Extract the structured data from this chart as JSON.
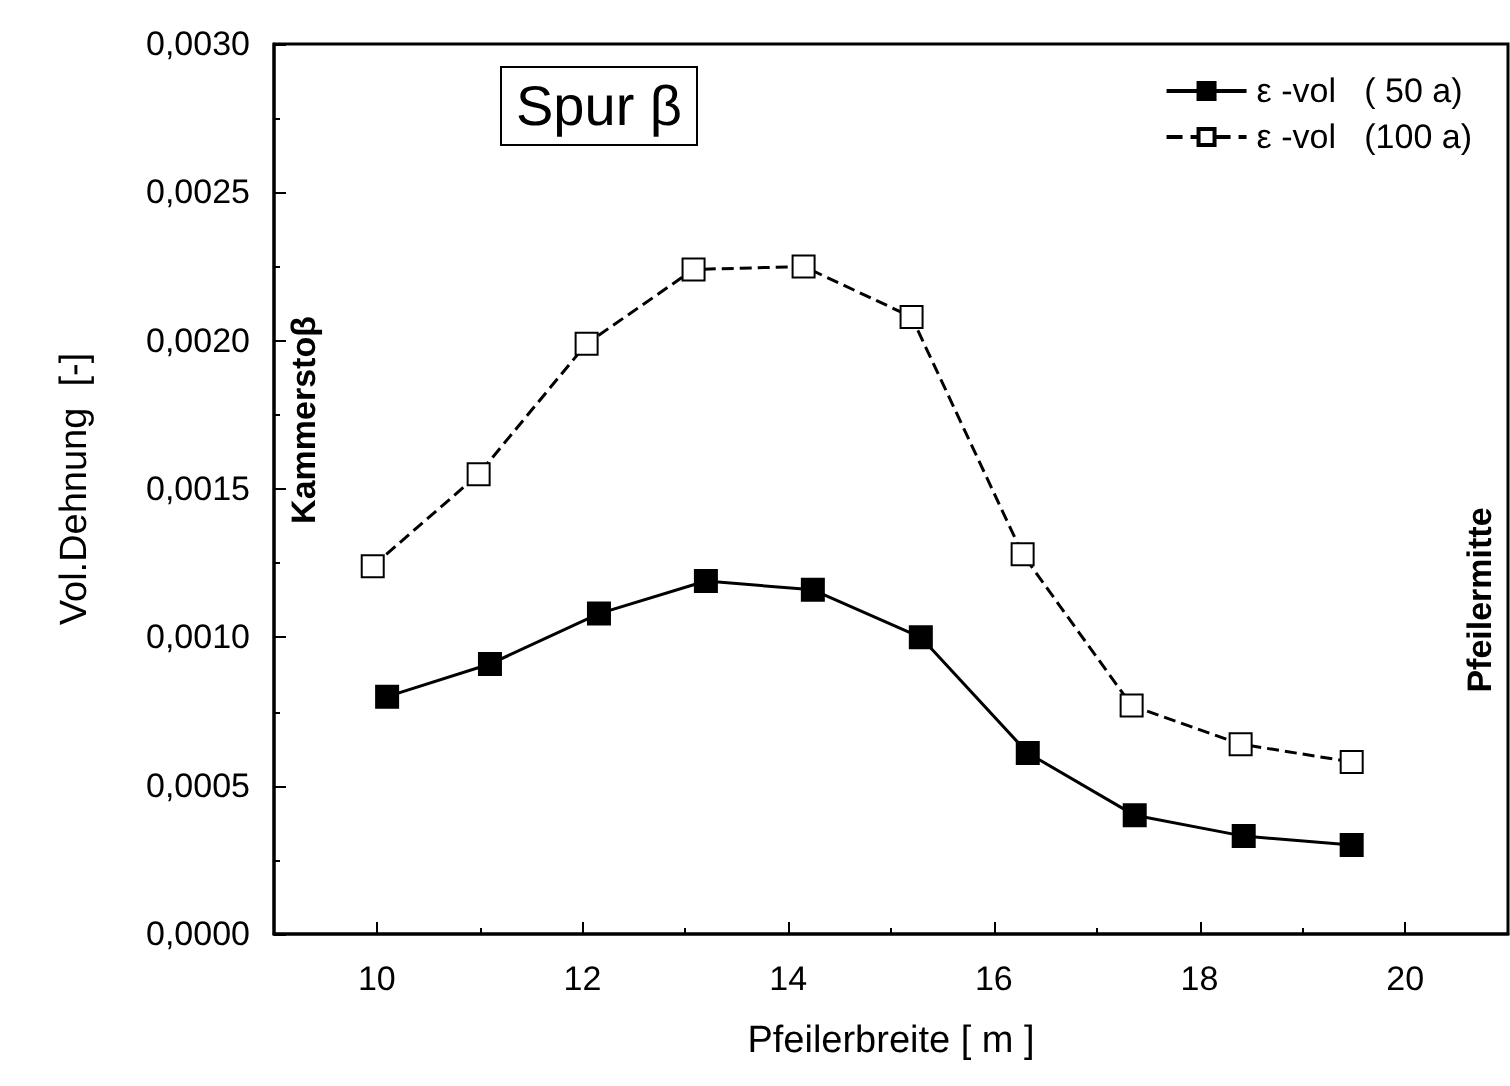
{
  "chart_data": {
    "type": "line",
    "title": "Spur β",
    "xlabel": "Pfeilerbreite [ m ]",
    "ylabel": "Vol.Dehnung  [-]",
    "annotations": [
      "Kammerstoβ",
      "Pfeilermitte"
    ],
    "xlim": [
      9,
      21
    ],
    "xticks": [
      10,
      12,
      14,
      16,
      18,
      20
    ],
    "ylim": [
      0,
      0.003
    ],
    "yticks": [
      {
        "value": 0,
        "label": "0,0000"
      },
      {
        "value": 0.0005,
        "label": "0,0005"
      },
      {
        "value": 0.001,
        "label": "0,0010"
      },
      {
        "value": 0.0015,
        "label": "0,0015"
      },
      {
        "value": 0.002,
        "label": "0,0020"
      },
      {
        "value": 0.0025,
        "label": "0,0025"
      },
      {
        "value": 0.003,
        "label": "0,0030"
      }
    ],
    "legend": "top right",
    "marker": "square",
    "series": [
      {
        "name": "ε -vol   ( 50 a)",
        "color": "#000000",
        "line_style": "solid",
        "x": [
          10.1,
          11.1,
          12.16,
          13.2,
          14.24,
          15.29,
          16.33,
          17.37,
          18.43,
          19.48
        ],
        "values": [
          0.0008,
          0.00091,
          0.00108,
          0.00119,
          0.00116,
          0.001,
          0.00061,
          0.0004,
          0.00033,
          0.0003
        ]
      },
      {
        "name": "ε -vol   (100 a)",
        "color": "#000000",
        "line_style": "dashed",
        "x": [
          9.96,
          10.99,
          12.04,
          13.08,
          14.15,
          15.2,
          16.28,
          17.34,
          18.4,
          19.48
        ],
        "values": [
          0.00124,
          0.00155,
          0.00199,
          0.00224,
          0.00225,
          0.00208,
          0.00128,
          0.00077,
          0.00064,
          0.00058
        ]
      }
    ]
  }
}
